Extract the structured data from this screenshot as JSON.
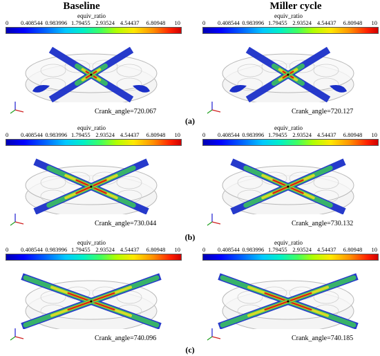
{
  "column_titles": {
    "left": "Baseline",
    "right": "Miller cycle"
  },
  "colorbar": {
    "label": "equiv_ratio",
    "ticks": [
      "0",
      "0.408544",
      "0.983996",
      "1.79455",
      "2.93524",
      "4.54437",
      "6.80948",
      "10"
    ]
  },
  "rows": [
    {
      "caption": "(a)",
      "baseline_crank": "Crank_angle=720.067",
      "miller_crank": "Crank_angle=720.127"
    },
    {
      "caption": "(b)",
      "baseline_crank": "Crank_angle=730.044",
      "miller_crank": "Crank_angle=730.132"
    },
    {
      "caption": "(c)",
      "baseline_crank": "Crank_angle=740.096",
      "miller_crank": "Crank_angle=740.185"
    }
  ],
  "colors": {
    "plane_blue": "#1a2fc8",
    "plume_green": "#3cc85a",
    "plume_yellow": "#e8e020",
    "plume_red": "#d42a10",
    "chamber_outline": "#b8b8b8"
  }
}
